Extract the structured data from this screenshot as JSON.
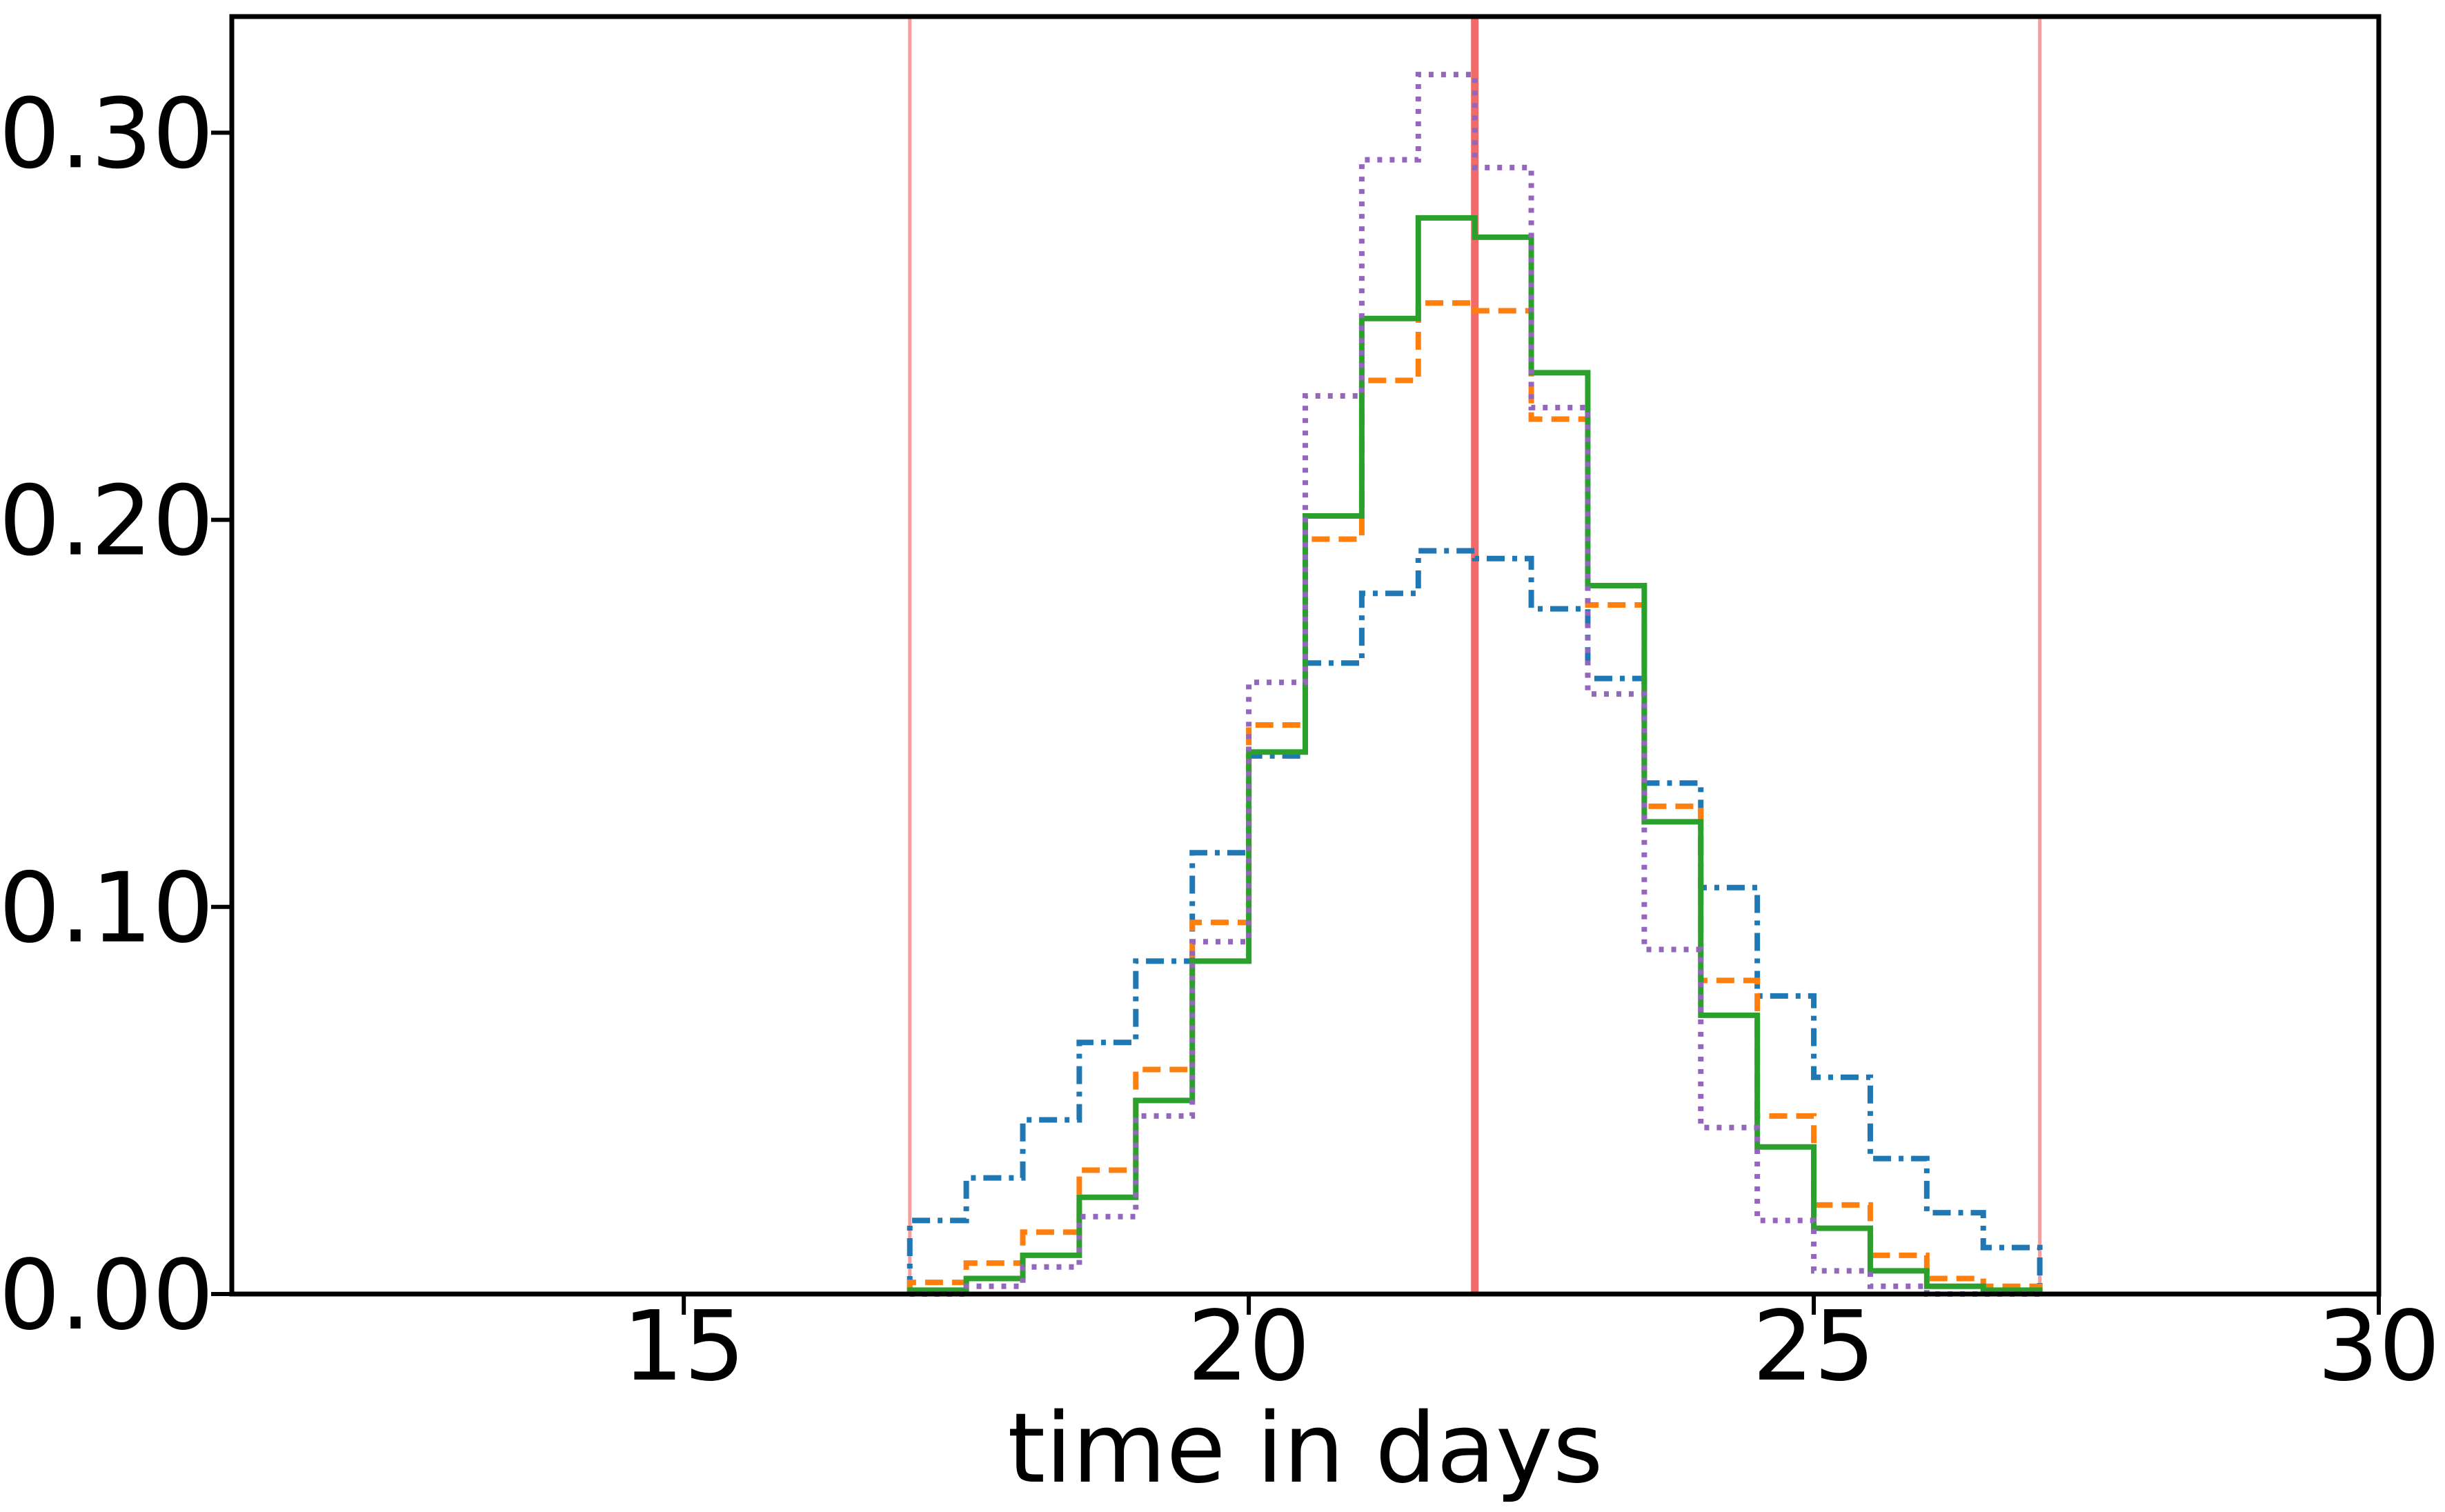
{
  "chart_data": {
    "type": "step",
    "xlabel": "time in days",
    "ylabel": "",
    "xlim": [
      11,
      30
    ],
    "ylim": [
      0,
      0.33
    ],
    "xticks": [
      15,
      20,
      25,
      30
    ],
    "xtick_labels": [
      "15",
      "20",
      "25",
      "30"
    ],
    "yticks": [
      0.0,
      0.1,
      0.2,
      0.3
    ],
    "ytick_labels": [
      "0.00",
      "0.10",
      "0.20",
      "0.30"
    ],
    "grid": false,
    "legend": "none",
    "bin_edges": [
      17.0,
      17.5,
      18.0,
      18.5,
      19.0,
      19.5,
      20.0,
      20.5,
      21.0,
      21.5,
      22.0,
      22.5,
      23.0,
      23.5,
      24.0,
      24.5,
      25.0,
      25.5,
      26.0,
      26.5,
      27.0
    ],
    "series": [
      {
        "style": "dashdot",
        "color": "#1f77b4",
        "values": [
          0.019,
          0.03,
          0.045,
          0.065,
          0.086,
          0.114,
          0.139,
          0.163,
          0.181,
          0.192,
          0.19,
          0.177,
          0.159,
          0.132,
          0.105,
          0.077,
          0.056,
          0.035,
          0.021,
          0.012
        ]
      },
      {
        "style": "dashed",
        "color": "#ff7f0e",
        "values": [
          0.003,
          0.008,
          0.016,
          0.032,
          0.058,
          0.096,
          0.147,
          0.195,
          0.236,
          0.256,
          0.254,
          0.226,
          0.178,
          0.126,
          0.081,
          0.046,
          0.023,
          0.01,
          0.004,
          0.002
        ]
      },
      {
        "style": "solid",
        "color": "#2ca02c",
        "values": [
          0.001,
          0.004,
          0.01,
          0.025,
          0.05,
          0.086,
          0.14,
          0.201,
          0.252,
          0.278,
          0.273,
          0.238,
          0.183,
          0.122,
          0.072,
          0.038,
          0.017,
          0.006,
          0.002,
          0.001
        ]
      },
      {
        "style": "dotted",
        "color": "#9467bd",
        "values": [
          0.0,
          0.002,
          0.007,
          0.02,
          0.046,
          0.091,
          0.158,
          0.232,
          0.293,
          0.315,
          0.291,
          0.229,
          0.155,
          0.089,
          0.043,
          0.019,
          0.006,
          0.002,
          0.0,
          0.0
        ]
      }
    ],
    "vlines": [
      {
        "x": 17.0,
        "color": "#f4a0a0",
        "weight": "thin"
      },
      {
        "x": 22.0,
        "color": "#f26b6b",
        "weight": "thick"
      },
      {
        "x": 27.0,
        "color": "#f4a0a0",
        "weight": "thin"
      }
    ]
  }
}
